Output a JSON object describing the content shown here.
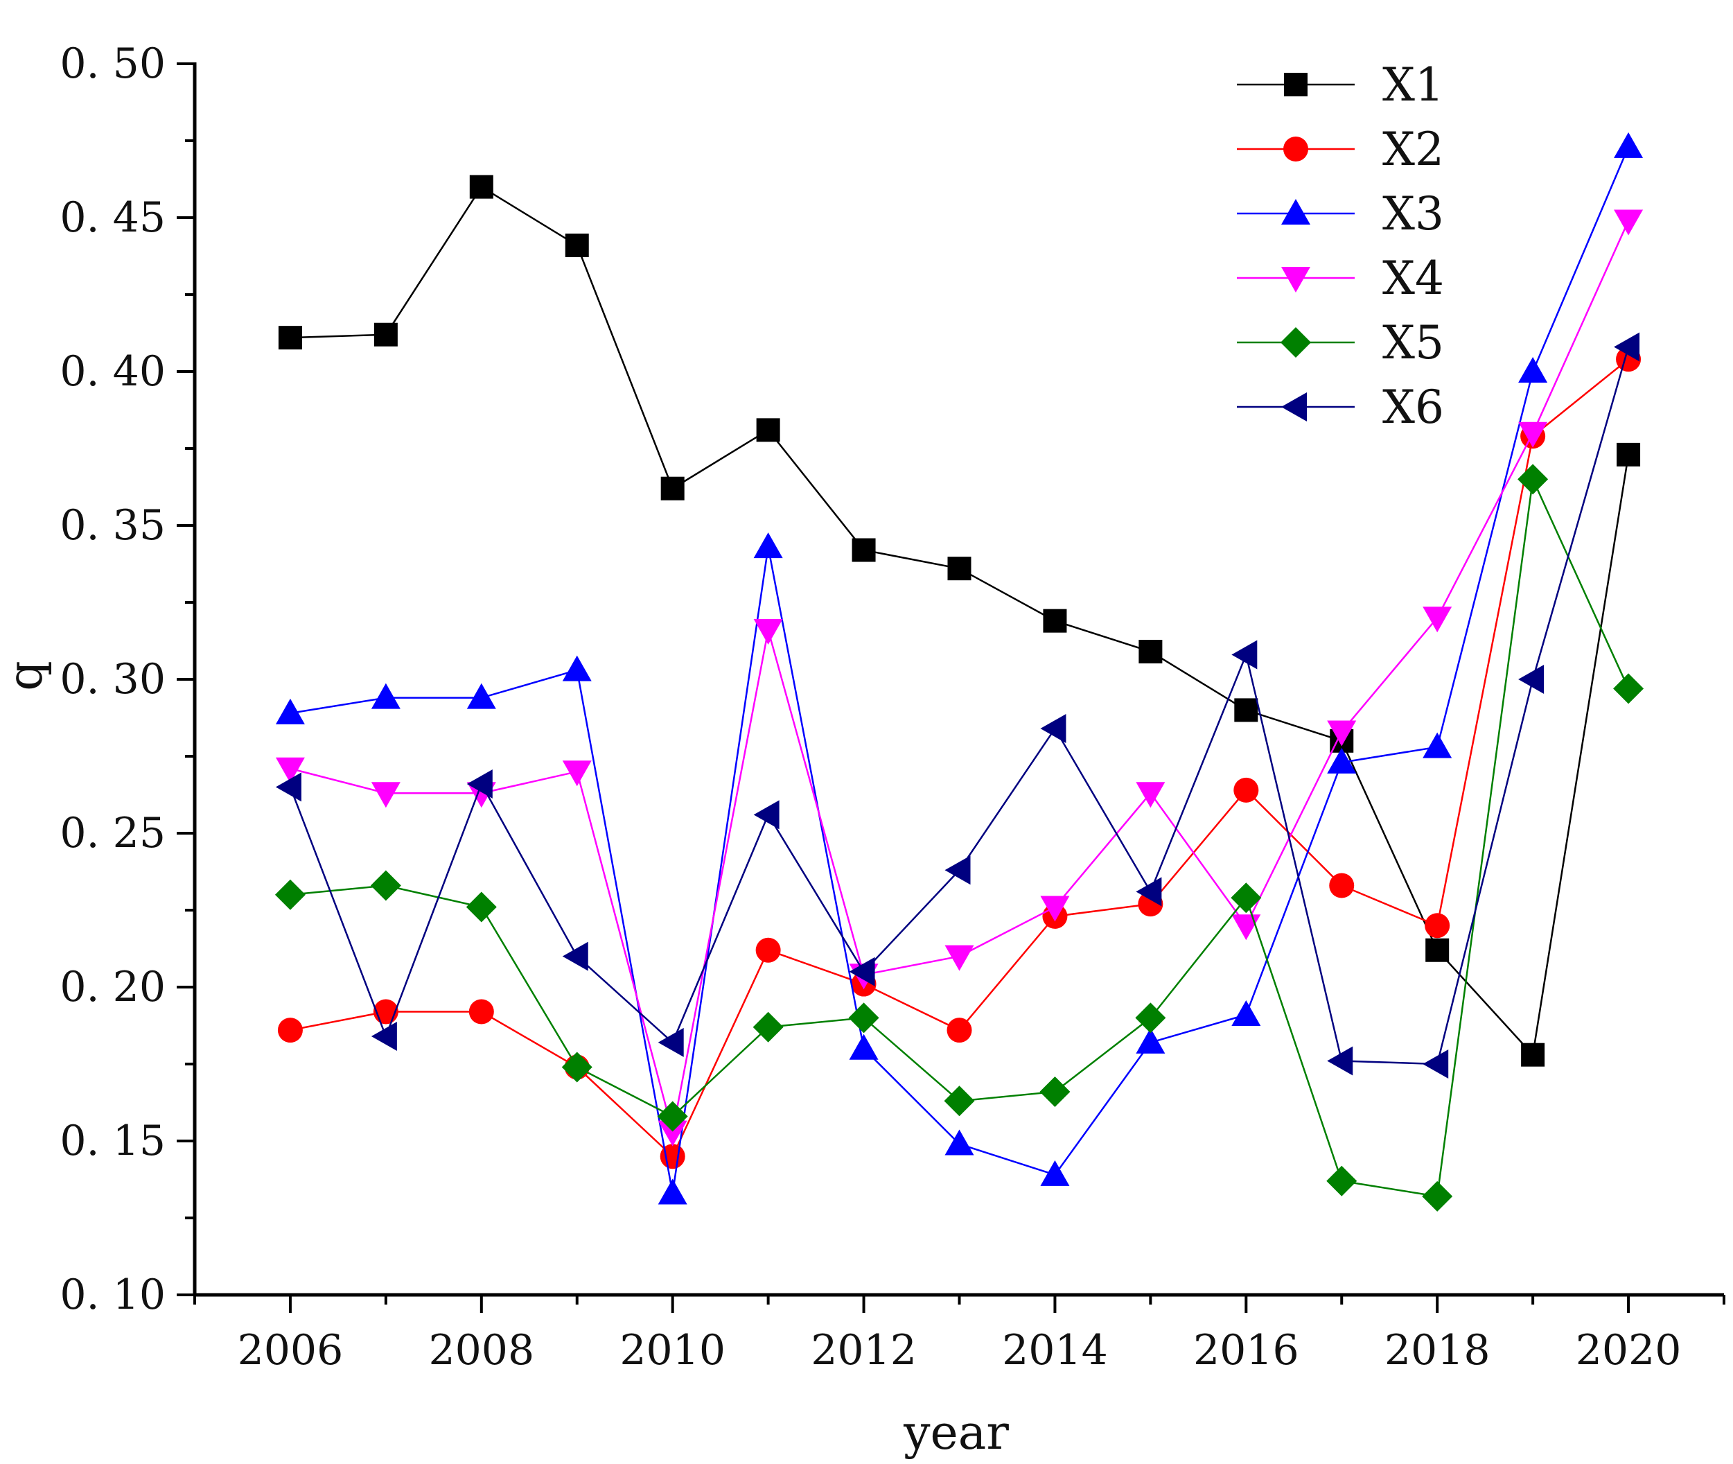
{
  "chart_data": {
    "type": "line",
    "title": "",
    "xlabel": "year",
    "ylabel": "q",
    "xlim": [
      2005,
      2021
    ],
    "ylim": [
      0.1,
      0.5
    ],
    "x": [
      2006,
      2007,
      2008,
      2009,
      2010,
      2011,
      2012,
      2013,
      2014,
      2015,
      2016,
      2017,
      2018,
      2019,
      2020
    ],
    "x_ticks": [
      2006,
      2008,
      2010,
      2012,
      2014,
      2016,
      2018,
      2020
    ],
    "x_tick_labels": [
      "2006",
      "2008",
      "2010",
      "2012",
      "2014",
      "2016",
      "2018",
      "2020"
    ],
    "y_ticks": [
      0.1,
      0.15,
      0.2,
      0.25,
      0.3,
      0.35,
      0.4,
      0.45,
      0.5
    ],
    "y_tick_labels": [
      "0. 10",
      "0. 15",
      "0. 20",
      "0. 25",
      "0. 30",
      "0. 35",
      "0. 40",
      "0. 45",
      "0. 50"
    ],
    "grid": false,
    "legend_position": "top-right",
    "series": [
      {
        "name": "X1",
        "color": "#000000",
        "marker": "square",
        "values": [
          0.411,
          0.412,
          0.46,
          0.441,
          0.362,
          0.381,
          0.342,
          0.336,
          0.319,
          0.309,
          0.29,
          0.28,
          0.212,
          0.178,
          0.373
        ]
      },
      {
        "name": "X2",
        "color": "#ff0000",
        "marker": "circle",
        "values": [
          0.186,
          0.192,
          0.192,
          0.174,
          0.145,
          0.212,
          0.201,
          0.186,
          0.223,
          0.227,
          0.264,
          0.233,
          0.22,
          0.379,
          0.404
        ]
      },
      {
        "name": "X3",
        "color": "#0000ff",
        "marker": "triangle-up",
        "values": [
          0.289,
          0.294,
          0.294,
          0.303,
          0.133,
          0.343,
          0.18,
          0.149,
          0.139,
          0.182,
          0.191,
          0.273,
          0.278,
          0.4,
          0.473
        ]
      },
      {
        "name": "X4",
        "color": "#ff00ff",
        "marker": "triangle-down",
        "values": [
          0.271,
          0.263,
          0.263,
          0.27,
          0.153,
          0.316,
          0.204,
          0.21,
          0.226,
          0.263,
          0.22,
          0.283,
          0.32,
          0.38,
          0.449
        ]
      },
      {
        "name": "X5",
        "color": "#008000",
        "marker": "diamond",
        "values": [
          0.23,
          0.233,
          0.226,
          0.174,
          0.158,
          0.187,
          0.19,
          0.163,
          0.166,
          0.19,
          0.229,
          0.137,
          0.132,
          0.365,
          0.297
        ]
      },
      {
        "name": "X6",
        "color": "#000080",
        "marker": "triangle-left",
        "values": [
          0.265,
          0.184,
          0.266,
          0.21,
          0.182,
          0.256,
          0.205,
          0.238,
          0.284,
          0.231,
          0.308,
          0.176,
          0.175,
          0.3,
          0.408
        ]
      }
    ]
  }
}
